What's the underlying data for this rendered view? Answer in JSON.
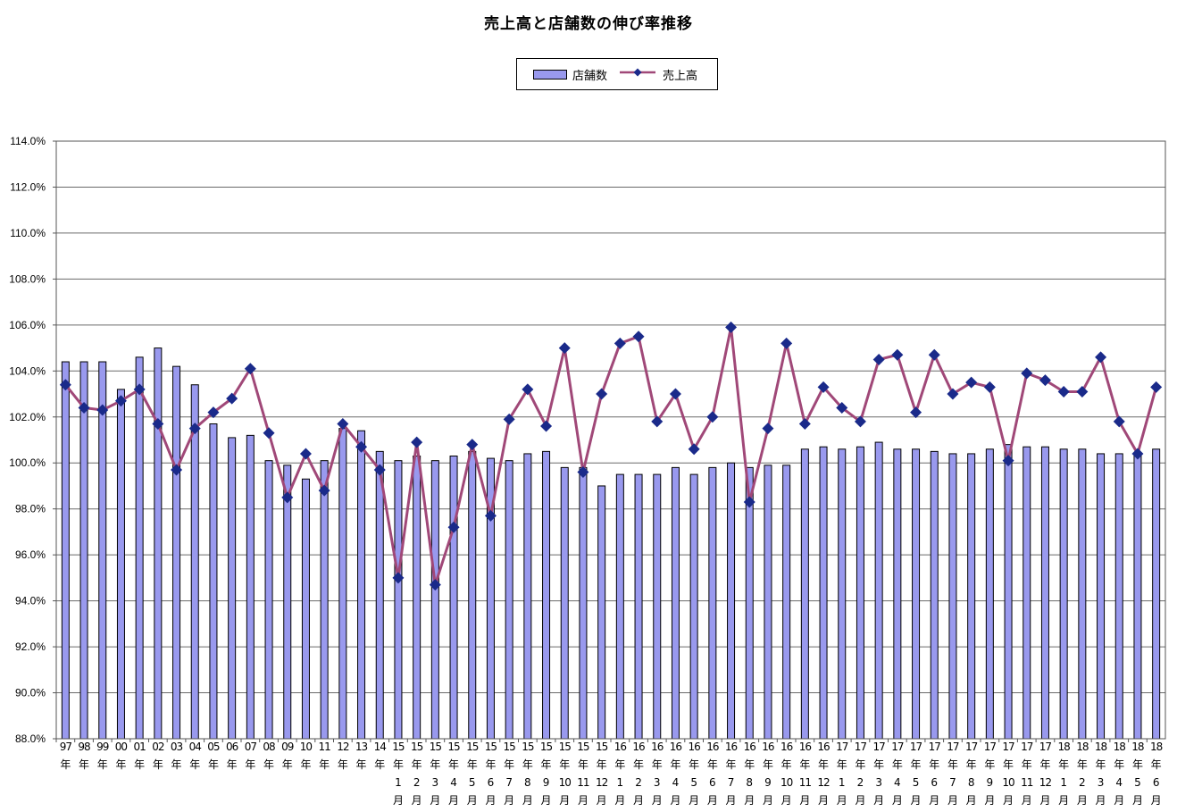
{
  "chart_data": {
    "type": "bar+line",
    "title": "売上高と店舗数の伸び率推移",
    "legend": [
      "店舗数",
      "売上高"
    ],
    "legend_position": "top-center",
    "ylim": [
      88.0,
      114.0
    ],
    "yticks": [
      "88.0%",
      "90.0%",
      "92.0%",
      "94.0%",
      "96.0%",
      "98.0%",
      "100.0%",
      "102.0%",
      "104.0%",
      "106.0%",
      "108.0%",
      "110.0%",
      "112.0%",
      "114.0%"
    ],
    "categories": [
      [
        "97",
        "年"
      ],
      [
        "98",
        "年"
      ],
      [
        "99",
        "年"
      ],
      [
        "00",
        "年"
      ],
      [
        "01",
        "年"
      ],
      [
        "02",
        "年"
      ],
      [
        "03",
        "年"
      ],
      [
        "04",
        "年"
      ],
      [
        "05",
        "年"
      ],
      [
        "06",
        "年"
      ],
      [
        "07",
        "年"
      ],
      [
        "08",
        "年"
      ],
      [
        "09",
        "年"
      ],
      [
        "10",
        "年"
      ],
      [
        "11",
        "年"
      ],
      [
        "12",
        "年"
      ],
      [
        "13",
        "年"
      ],
      [
        "14",
        "年"
      ],
      [
        "15",
        "年",
        "1",
        "月"
      ],
      [
        "15",
        "年",
        "2",
        "月"
      ],
      [
        "15",
        "年",
        "3",
        "月"
      ],
      [
        "15",
        "年",
        "4",
        "月"
      ],
      [
        "15",
        "年",
        "5",
        "月"
      ],
      [
        "15",
        "年",
        "6",
        "月"
      ],
      [
        "15",
        "年",
        "7",
        "月"
      ],
      [
        "15",
        "年",
        "8",
        "月"
      ],
      [
        "15",
        "年",
        "9",
        "月"
      ],
      [
        "15",
        "年",
        "10",
        "月"
      ],
      [
        "15",
        "年",
        "11",
        "月"
      ],
      [
        "15",
        "年",
        "12",
        "月"
      ],
      [
        "16",
        "年",
        "1",
        "月"
      ],
      [
        "16",
        "年",
        "2",
        "月"
      ],
      [
        "16",
        "年",
        "3",
        "月"
      ],
      [
        "16",
        "年",
        "4",
        "月"
      ],
      [
        "16",
        "年",
        "5",
        "月"
      ],
      [
        "16",
        "年",
        "6",
        "月"
      ],
      [
        "16",
        "年",
        "7",
        "月"
      ],
      [
        "16",
        "年",
        "8",
        "月"
      ],
      [
        "16",
        "年",
        "9",
        "月"
      ],
      [
        "16",
        "年",
        "10",
        "月"
      ],
      [
        "16",
        "年",
        "11",
        "月"
      ],
      [
        "16",
        "年",
        "12",
        "月"
      ],
      [
        "17",
        "年",
        "1",
        "月"
      ],
      [
        "17",
        "年",
        "2",
        "月"
      ],
      [
        "17",
        "年",
        "3",
        "月"
      ],
      [
        "17",
        "年",
        "4",
        "月"
      ],
      [
        "17",
        "年",
        "5",
        "月"
      ],
      [
        "17",
        "年",
        "6",
        "月"
      ],
      [
        "17",
        "年",
        "7",
        "月"
      ],
      [
        "17",
        "年",
        "8",
        "月"
      ],
      [
        "17",
        "年",
        "9",
        "月"
      ],
      [
        "17",
        "年",
        "10",
        "月"
      ],
      [
        "17",
        "年",
        "11",
        "月"
      ],
      [
        "17",
        "年",
        "12",
        "月"
      ],
      [
        "18",
        "年",
        "1",
        "月"
      ],
      [
        "18",
        "年",
        "2",
        "月"
      ],
      [
        "18",
        "年",
        "3",
        "月"
      ],
      [
        "18",
        "年",
        "4",
        "月"
      ],
      [
        "18",
        "年",
        "5",
        "月"
      ],
      [
        "18",
        "年",
        "6",
        "月"
      ]
    ],
    "series": [
      {
        "name": "店舗数",
        "type": "bar",
        "color": "#9999ee",
        "values": [
          104.4,
          104.4,
          104.4,
          103.2,
          104.6,
          105.0,
          104.2,
          103.4,
          101.7,
          101.1,
          101.2,
          100.1,
          99.9,
          99.3,
          100.1,
          101.5,
          101.4,
          100.5,
          100.1,
          100.3,
          100.1,
          100.3,
          100.5,
          100.2,
          100.1,
          100.4,
          100.5,
          99.8,
          99.8,
          99.0,
          99.5,
          99.5,
          99.5,
          99.8,
          99.5,
          99.8,
          100.0,
          99.8,
          99.9,
          99.9,
          100.6,
          100.7,
          100.6,
          100.7,
          100.9,
          100.6,
          100.6,
          100.5,
          100.4,
          100.4,
          100.6,
          100.8,
          100.7,
          100.7,
          100.6,
          100.6,
          100.4,
          100.4,
          100.3,
          100.6
        ]
      },
      {
        "name": "売上高",
        "type": "line",
        "color": "#a04878",
        "marker_color": "#1a2a8a",
        "values": [
          103.4,
          102.4,
          102.3,
          102.7,
          103.2,
          101.7,
          99.7,
          101.5,
          102.2,
          102.8,
          104.1,
          101.3,
          98.5,
          100.4,
          98.8,
          101.7,
          100.7,
          99.7,
          95.0,
          100.9,
          94.7,
          97.2,
          100.8,
          97.7,
          101.9,
          103.2,
          101.6,
          105.0,
          99.6,
          103.0,
          105.2,
          105.5,
          101.8,
          103.0,
          100.6,
          102.0,
          105.9,
          98.3,
          101.5,
          105.2,
          101.7,
          103.3,
          102.4,
          101.8,
          104.5,
          104.7,
          102.2,
          104.7,
          103.0,
          103.5,
          103.3,
          100.1,
          103.9,
          103.6,
          103.1,
          103.1,
          104.6,
          101.8,
          100.4,
          103.3
        ]
      }
    ],
    "grid": true
  }
}
